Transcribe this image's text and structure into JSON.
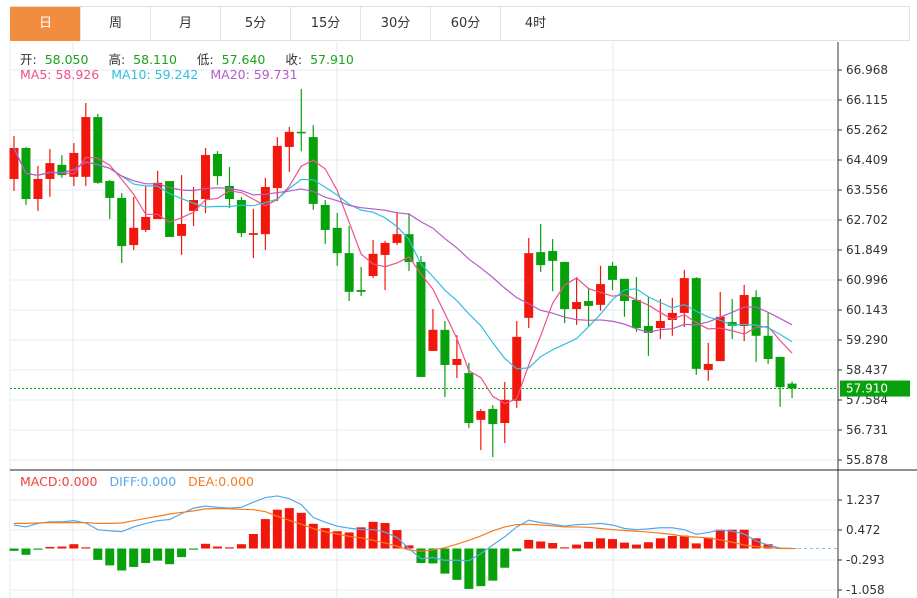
{
  "tabs": [
    {
      "label": "日",
      "active": true
    },
    {
      "label": "周"
    },
    {
      "label": "月"
    },
    {
      "label": "5分"
    },
    {
      "label": "15分"
    },
    {
      "label": "30分"
    },
    {
      "label": "60分"
    },
    {
      "label": "4时"
    }
  ],
  "ohlc_header": {
    "open_label": "开:",
    "open": "58.050",
    "high_label": "高:",
    "high": "58.110",
    "low_label": "低:",
    "low": "57.640",
    "close_label": "收:",
    "close": "57.910"
  },
  "ma_header": {
    "ma5": "MA5: 58.926",
    "ma10": "MA10: 59.242",
    "ma20": "MA20: 59.731"
  },
  "macd_header": {
    "macd": "MACD:0.000",
    "diff": "DIFF:0.000",
    "dea": "DEA:0.000"
  },
  "colors": {
    "up": "#f2170c",
    "down": "#07a10b",
    "ma5": "#f0508a",
    "ma10": "#30c0dc",
    "ma20": "#b45cc8",
    "diff": "#55a8ef",
    "dea": "#f57c1e",
    "tab_active": "#f28c3f"
  },
  "chart_data": [
    {
      "type": "candlestick",
      "title": "",
      "y_ticks": [
        "66.968",
        "66.115",
        "65.262",
        "64.409",
        "63.556",
        "62.702",
        "61.849",
        "60.996",
        "60.143",
        "59.290",
        "58.437",
        "57.584",
        "56.731",
        "55.878"
      ],
      "ylim": [
        55.878,
        66.968
      ],
      "last_price": "57.910",
      "series_ma": [
        "MA5",
        "MA10",
        "MA20"
      ],
      "ohlc": [
        [
          63.87,
          65.09,
          63.53,
          64.75
        ],
        [
          64.75,
          64.78,
          63.13,
          63.3
        ],
        [
          63.3,
          64.24,
          62.96,
          63.87
        ],
        [
          63.87,
          64.72,
          63.36,
          64.32
        ],
        [
          64.27,
          64.55,
          63.9,
          63.98
        ],
        [
          63.93,
          64.89,
          63.67,
          64.61
        ],
        [
          63.93,
          66.03,
          63.67,
          65.63
        ],
        [
          65.63,
          65.72,
          63.73,
          63.76
        ],
        [
          63.81,
          63.84,
          62.73,
          63.33
        ],
        [
          63.33,
          63.47,
          61.48,
          61.96
        ],
        [
          61.99,
          63.36,
          61.85,
          62.48
        ],
        [
          62.42,
          63.67,
          62.36,
          62.79
        ],
        [
          62.73,
          64.1,
          62.73,
          63.76
        ],
        [
          63.81,
          63.81,
          62.22,
          62.22
        ],
        [
          62.25,
          63.98,
          61.71,
          62.59
        ],
        [
          62.96,
          63.64,
          62.53,
          63.27
        ],
        [
          63.3,
          64.75,
          62.9,
          64.55
        ],
        [
          64.58,
          64.66,
          63.7,
          63.95
        ],
        [
          63.67,
          64.21,
          63.04,
          63.3
        ],
        [
          63.27,
          63.36,
          62.22,
          62.33
        ],
        [
          62.28,
          63.02,
          61.62,
          62.33
        ],
        [
          62.3,
          63.9,
          61.85,
          63.64
        ],
        [
          63.61,
          65.06,
          63.24,
          64.81
        ],
        [
          64.78,
          65.35,
          64.07,
          65.21
        ],
        [
          65.21,
          66.43,
          64.66,
          65.18
        ],
        [
          65.06,
          65.4,
          62.99,
          63.16
        ],
        [
          63.13,
          63.27,
          62.02,
          62.42
        ],
        [
          62.48,
          62.9,
          61.4,
          61.76
        ],
        [
          61.76,
          62.53,
          60.4,
          60.66
        ],
        [
          60.71,
          61.37,
          60.54,
          60.66
        ],
        [
          61.11,
          62.13,
          61.05,
          61.74
        ],
        [
          61.71,
          62.11,
          60.71,
          62.05
        ],
        [
          62.05,
          62.93,
          61.99,
          62.3
        ],
        [
          62.3,
          62.9,
          61.25,
          61.51
        ],
        [
          61.51,
          61.68,
          58.24,
          58.24
        ],
        [
          58.98,
          60.17,
          58.98,
          59.58
        ],
        [
          59.58,
          59.83,
          57.67,
          58.58
        ],
        [
          58.58,
          59.43,
          58.21,
          58.75
        ],
        [
          58.35,
          58.64,
          56.79,
          56.93
        ],
        [
          57.02,
          57.33,
          56.16,
          57.27
        ],
        [
          57.33,
          57.44,
          55.96,
          56.9
        ],
        [
          56.93,
          58.1,
          56.36,
          57.59
        ],
        [
          57.56,
          59.83,
          57.36,
          59.38
        ],
        [
          59.92,
          62.19,
          59.63,
          61.76
        ],
        [
          61.79,
          62.59,
          61.22,
          61.42
        ],
        [
          61.82,
          62.16,
          60.68,
          61.54
        ],
        [
          61.51,
          61.51,
          59.77,
          60.17
        ],
        [
          60.17,
          61.08,
          59.72,
          60.37
        ],
        [
          60.4,
          60.77,
          59.66,
          60.26
        ],
        [
          60.29,
          61.4,
          60.12,
          60.88
        ],
        [
          61.4,
          61.51,
          60.71,
          61.0
        ],
        [
          61.03,
          61.03,
          59.95,
          60.4
        ],
        [
          60.43,
          61.08,
          59.52,
          59.63
        ],
        [
          59.69,
          60.51,
          58.84,
          59.49
        ],
        [
          59.63,
          60.46,
          59.32,
          59.83
        ],
        [
          59.86,
          60.49,
          59.41,
          60.06
        ],
        [
          60.06,
          61.28,
          59.66,
          61.05
        ],
        [
          61.05,
          61.08,
          58.3,
          58.47
        ],
        [
          58.44,
          59.21,
          58.13,
          58.61
        ],
        [
          58.69,
          60.66,
          58.69,
          59.95
        ],
        [
          59.8,
          60.46,
          59.32,
          59.69
        ],
        [
          59.69,
          60.86,
          59.26,
          60.57
        ],
        [
          60.51,
          60.71,
          58.67,
          59.41
        ],
        [
          59.41,
          60.06,
          58.61,
          58.75
        ],
        [
          58.81,
          58.81,
          57.39,
          57.95
        ],
        [
          58.05,
          58.11,
          57.64,
          57.91
        ]
      ]
    },
    {
      "type": "bar+line",
      "title": "MACD",
      "y_ticks": [
        "1.237",
        "0.472",
        "-0.293",
        "-1.058"
      ],
      "ylim": [
        -1.058,
        1.237
      ],
      "macd": [
        -0.06,
        -0.16,
        -0.03,
        0.04,
        0.05,
        0.11,
        0.03,
        -0.29,
        -0.43,
        -0.56,
        -0.47,
        -0.37,
        -0.31,
        -0.4,
        -0.22,
        -0.03,
        0.12,
        0.05,
        0.03,
        0.11,
        0.37,
        0.75,
        0.99,
        1.03,
        0.91,
        0.63,
        0.52,
        0.44,
        0.41,
        0.54,
        0.68,
        0.65,
        0.47,
        0.08,
        -0.37,
        -0.38,
        -0.64,
        -0.8,
        -1.03,
        -0.96,
        -0.82,
        -0.49,
        -0.07,
        0.22,
        0.18,
        0.14,
        0.03,
        0.1,
        0.17,
        0.26,
        0.24,
        0.15,
        0.1,
        0.16,
        0.26,
        0.32,
        0.33,
        0.13,
        0.28,
        0.48,
        0.48,
        0.48,
        0.26,
        0.11,
        0.01,
        0.0
      ],
      "diff": [
        0.6,
        0.55,
        0.64,
        0.68,
        0.68,
        0.71,
        0.65,
        0.48,
        0.45,
        0.43,
        0.55,
        0.64,
        0.71,
        0.74,
        0.89,
        1.03,
        1.08,
        1.05,
        1.03,
        1.05,
        1.18,
        1.3,
        1.34,
        1.27,
        1.12,
        0.79,
        0.67,
        0.57,
        0.52,
        0.48,
        0.48,
        0.42,
        0.28,
        0.0,
        -0.26,
        -0.23,
        -0.3,
        -0.3,
        -0.31,
        -0.13,
        0.09,
        0.3,
        0.55,
        0.72,
        0.66,
        0.62,
        0.57,
        0.61,
        0.62,
        0.64,
        0.6,
        0.51,
        0.48,
        0.5,
        0.53,
        0.53,
        0.48,
        0.36,
        0.41,
        0.47,
        0.44,
        0.37,
        0.19,
        0.09,
        0.01,
        0.0
      ],
      "dea": [
        0.64,
        0.64,
        0.65,
        0.66,
        0.66,
        0.66,
        0.66,
        0.64,
        0.64,
        0.65,
        0.71,
        0.77,
        0.82,
        0.88,
        0.92,
        0.96,
        1.01,
        1.02,
        1.01,
        1.0,
        0.99,
        0.94,
        0.82,
        0.72,
        0.62,
        0.51,
        0.43,
        0.37,
        0.31,
        0.27,
        0.21,
        0.14,
        0.06,
        -0.04,
        -0.07,
        -0.04,
        0.02,
        0.11,
        0.21,
        0.32,
        0.45,
        0.55,
        0.61,
        0.62,
        0.6,
        0.58,
        0.55,
        0.55,
        0.54,
        0.51,
        0.48,
        0.46,
        0.44,
        0.42,
        0.39,
        0.36,
        0.31,
        0.29,
        0.27,
        0.22,
        0.16,
        0.09,
        0.05,
        0.03,
        0.0,
        0.0
      ]
    }
  ]
}
